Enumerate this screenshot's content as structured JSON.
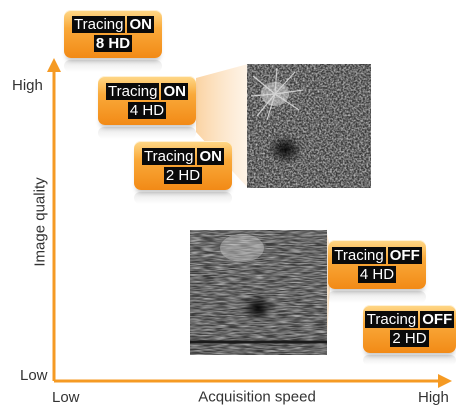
{
  "axes": {
    "y_title": "Image quality",
    "x_title": "Acquisition speed",
    "y_high": "High",
    "y_low": "Low",
    "x_low": "Low",
    "x_high": "High",
    "color": "#f59a23"
  },
  "badges": [
    {
      "tracing": "Tracing",
      "state": "ON",
      "resolution": "8 HD"
    },
    {
      "tracing": "Tracing",
      "state": "ON",
      "resolution": "4 HD"
    },
    {
      "tracing": "Tracing",
      "state": "ON",
      "resolution": "2 HD"
    },
    {
      "tracing": "Tracing",
      "state": "OFF",
      "resolution": "4 HD"
    },
    {
      "tracing": "Tracing",
      "state": "OFF",
      "resolution": "2 HD"
    }
  ],
  "images": [
    {
      "subject": "oct-angiography-tracing-on-4hd"
    },
    {
      "subject": "oct-angiography-tracing-off-4hd"
    }
  ]
}
